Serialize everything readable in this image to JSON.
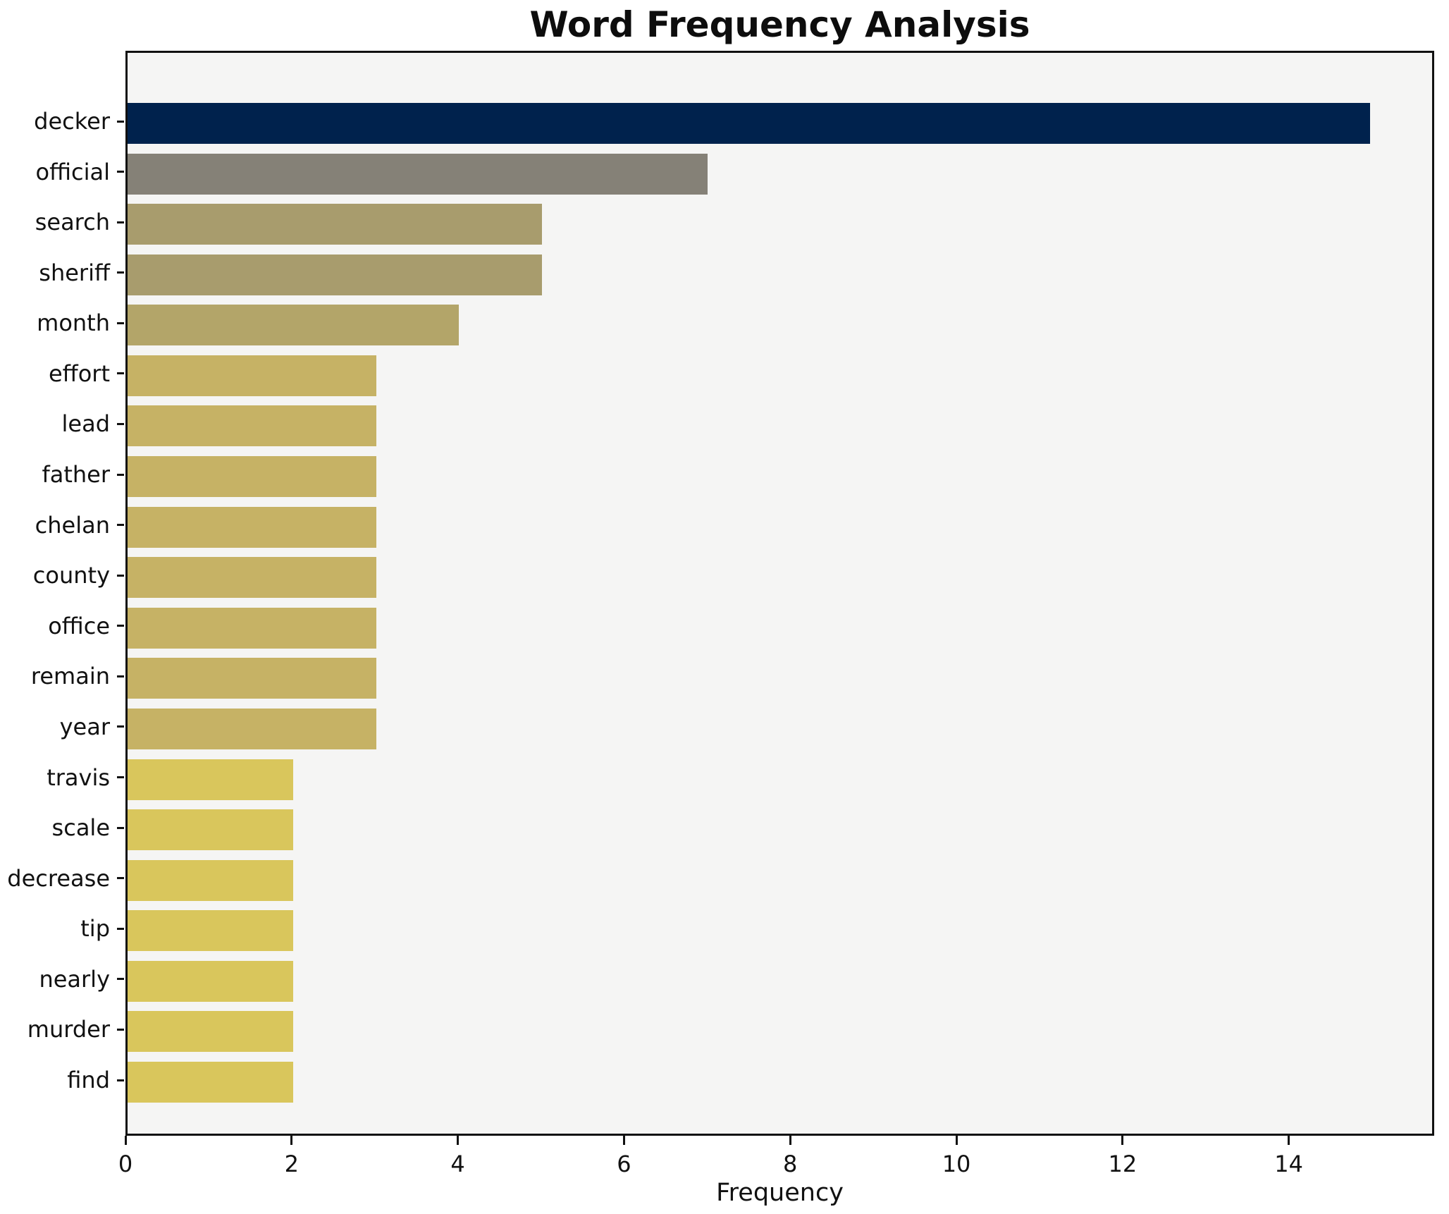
{
  "chart_data": {
    "type": "bar",
    "orientation": "horizontal",
    "title": "Word Frequency Analysis",
    "xlabel": "Frequency",
    "ylabel": "",
    "xlim": [
      0,
      15.75
    ],
    "xticks": [
      0,
      2,
      4,
      6,
      8,
      10,
      12,
      14
    ],
    "grid": false,
    "legend": false,
    "plot_background": "#f5f5f4",
    "figure_background": "#ffffff",
    "spine_color": "#111111",
    "categories": [
      "decker",
      "official",
      "search",
      "sheriff",
      "month",
      "effort",
      "lead",
      "father",
      "chelan",
      "county",
      "office",
      "remain",
      "year",
      "travis",
      "scale",
      "decrease",
      "tip",
      "nearly",
      "murder",
      "find"
    ],
    "values": [
      15,
      7,
      5,
      5,
      4,
      3,
      3,
      3,
      3,
      3,
      3,
      3,
      3,
      2,
      2,
      2,
      2,
      2,
      2,
      2
    ],
    "bar_colors": [
      "#00224d",
      "#858177",
      "#a89c6d",
      "#a89c6d",
      "#b3a569",
      "#c6b265",
      "#c6b265",
      "#c6b265",
      "#c6b265",
      "#c6b265",
      "#c6b265",
      "#c6b265",
      "#c6b265",
      "#d9c65c",
      "#d9c65c",
      "#d9c65c",
      "#d9c65c",
      "#d9c65c",
      "#d9c65c",
      "#d9c65c"
    ]
  }
}
